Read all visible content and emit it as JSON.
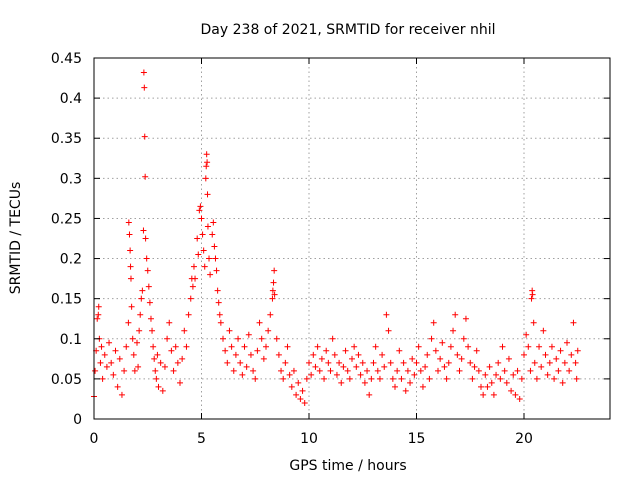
{
  "chart_data": {
    "type": "scatter",
    "title": "Day 238 of 2021, SRMTID for receiver nhil",
    "xlabel": "GPS time / hours",
    "ylabel": "SRMTID / TECUs",
    "xlim": [
      0,
      24
    ],
    "ylim": [
      0,
      0.45
    ],
    "x_ticks": [
      0,
      5,
      10,
      15,
      20
    ],
    "y_ticks": [
      0,
      0.05,
      0.1,
      0.15,
      0.2,
      0.25,
      0.3,
      0.35,
      0.4,
      0.45
    ],
    "x_tick_labels": [
      "0",
      "5",
      "10",
      "15",
      "20"
    ],
    "y_tick_labels": [
      "0",
      "0.05",
      "0.1",
      "0.15",
      "0.2",
      "0.25",
      "0.3",
      "0.35",
      "0.4",
      "0.45"
    ],
    "grid": true,
    "marker": "+",
    "color": "#ff0000",
    "series": [
      {
        "name": "SRMTID",
        "points": [
          [
            0.0,
            0.028
          ],
          [
            0.05,
            0.06
          ],
          [
            0.1,
            0.085
          ],
          [
            0.15,
            0.125
          ],
          [
            0.2,
            0.13
          ],
          [
            0.22,
            0.14
          ],
          [
            0.25,
            0.1
          ],
          [
            0.3,
            0.07
          ],
          [
            0.35,
            0.09
          ],
          [
            0.4,
            0.05
          ],
          [
            0.5,
            0.08
          ],
          [
            0.6,
            0.065
          ],
          [
            0.7,
            0.095
          ],
          [
            0.8,
            0.07
          ],
          [
            0.9,
            0.055
          ],
          [
            1.0,
            0.085
          ],
          [
            1.1,
            0.04
          ],
          [
            1.2,
            0.075
          ],
          [
            1.3,
            0.03
          ],
          [
            1.4,
            0.06
          ],
          [
            1.5,
            0.09
          ],
          [
            1.6,
            0.12
          ],
          [
            1.62,
            0.245
          ],
          [
            1.65,
            0.23
          ],
          [
            1.68,
            0.21
          ],
          [
            1.7,
            0.19
          ],
          [
            1.72,
            0.175
          ],
          [
            1.75,
            0.14
          ],
          [
            1.8,
            0.1
          ],
          [
            1.85,
            0.08
          ],
          [
            1.9,
            0.06
          ],
          [
            2.0,
            0.095
          ],
          [
            2.05,
            0.065
          ],
          [
            2.1,
            0.11
          ],
          [
            2.15,
            0.13
          ],
          [
            2.2,
            0.15
          ],
          [
            2.25,
            0.16
          ],
          [
            2.3,
            0.235
          ],
          [
            2.32,
            0.432
          ],
          [
            2.34,
            0.413
          ],
          [
            2.36,
            0.352
          ],
          [
            2.38,
            0.302
          ],
          [
            2.4,
            0.225
          ],
          [
            2.45,
            0.2
          ],
          [
            2.5,
            0.185
          ],
          [
            2.55,
            0.165
          ],
          [
            2.6,
            0.145
          ],
          [
            2.65,
            0.125
          ],
          [
            2.7,
            0.11
          ],
          [
            2.75,
            0.09
          ],
          [
            2.8,
            0.075
          ],
          [
            2.85,
            0.06
          ],
          [
            2.9,
            0.05
          ],
          [
            2.95,
            0.08
          ],
          [
            3.0,
            0.04
          ],
          [
            3.1,
            0.07
          ],
          [
            3.2,
            0.035
          ],
          [
            3.3,
            0.065
          ],
          [
            3.4,
            0.1
          ],
          [
            3.5,
            0.12
          ],
          [
            3.6,
            0.085
          ],
          [
            3.7,
            0.06
          ],
          [
            3.8,
            0.09
          ],
          [
            3.9,
            0.07
          ],
          [
            4.0,
            0.045
          ],
          [
            4.1,
            0.075
          ],
          [
            4.2,
            0.11
          ],
          [
            4.3,
            0.09
          ],
          [
            4.4,
            0.13
          ],
          [
            4.5,
            0.15
          ],
          [
            4.55,
            0.175
          ],
          [
            4.6,
            0.165
          ],
          [
            4.65,
            0.19
          ],
          [
            4.7,
            0.175
          ],
          [
            4.8,
            0.225
          ],
          [
            4.85,
            0.205
          ],
          [
            4.9,
            0.26
          ],
          [
            4.95,
            0.265
          ],
          [
            5.0,
            0.25
          ],
          [
            5.05,
            0.23
          ],
          [
            5.1,
            0.21
          ],
          [
            5.15,
            0.19
          ],
          [
            5.2,
            0.3
          ],
          [
            5.22,
            0.315
          ],
          [
            5.24,
            0.33
          ],
          [
            5.26,
            0.32
          ],
          [
            5.28,
            0.28
          ],
          [
            5.3,
            0.24
          ],
          [
            5.35,
            0.2
          ],
          [
            5.4,
            0.18
          ],
          [
            5.5,
            0.23
          ],
          [
            5.55,
            0.245
          ],
          [
            5.6,
            0.215
          ],
          [
            5.65,
            0.2
          ],
          [
            5.7,
            0.185
          ],
          [
            5.75,
            0.16
          ],
          [
            5.8,
            0.145
          ],
          [
            5.85,
            0.13
          ],
          [
            5.9,
            0.12
          ],
          [
            6.0,
            0.1
          ],
          [
            6.1,
            0.085
          ],
          [
            6.2,
            0.07
          ],
          [
            6.3,
            0.11
          ],
          [
            6.4,
            0.09
          ],
          [
            6.5,
            0.06
          ],
          [
            6.6,
            0.08
          ],
          [
            6.7,
            0.1
          ],
          [
            6.8,
            0.07
          ],
          [
            6.9,
            0.055
          ],
          [
            7.0,
            0.09
          ],
          [
            7.1,
            0.065
          ],
          [
            7.2,
            0.105
          ],
          [
            7.3,
            0.08
          ],
          [
            7.4,
            0.06
          ],
          [
            7.5,
            0.05
          ],
          [
            7.6,
            0.085
          ],
          [
            7.7,
            0.12
          ],
          [
            7.8,
            0.1
          ],
          [
            7.9,
            0.075
          ],
          [
            8.0,
            0.09
          ],
          [
            8.1,
            0.11
          ],
          [
            8.2,
            0.13
          ],
          [
            8.3,
            0.15
          ],
          [
            8.32,
            0.16
          ],
          [
            8.35,
            0.17
          ],
          [
            8.38,
            0.185
          ],
          [
            8.4,
            0.155
          ],
          [
            8.5,
            0.1
          ],
          [
            8.6,
            0.08
          ],
          [
            8.7,
            0.06
          ],
          [
            8.8,
            0.05
          ],
          [
            8.9,
            0.07
          ],
          [
            9.0,
            0.09
          ],
          [
            9.1,
            0.055
          ],
          [
            9.2,
            0.04
          ],
          [
            9.3,
            0.06
          ],
          [
            9.4,
            0.03
          ],
          [
            9.5,
            0.045
          ],
          [
            9.6,
            0.025
          ],
          [
            9.7,
            0.035
          ],
          [
            9.8,
            0.02
          ],
          [
            9.9,
            0.05
          ],
          [
            10.0,
            0.07
          ],
          [
            10.1,
            0.055
          ],
          [
            10.2,
            0.08
          ],
          [
            10.3,
            0.065
          ],
          [
            10.4,
            0.09
          ],
          [
            10.5,
            0.06
          ],
          [
            10.6,
            0.075
          ],
          [
            10.7,
            0.05
          ],
          [
            10.8,
            0.085
          ],
          [
            10.9,
            0.07
          ],
          [
            11.0,
            0.06
          ],
          [
            11.1,
            0.1
          ],
          [
            11.2,
            0.08
          ],
          [
            11.3,
            0.055
          ],
          [
            11.4,
            0.07
          ],
          [
            11.5,
            0.045
          ],
          [
            11.6,
            0.065
          ],
          [
            11.7,
            0.085
          ],
          [
            11.8,
            0.06
          ],
          [
            11.9,
            0.05
          ],
          [
            12.0,
            0.075
          ],
          [
            12.1,
            0.09
          ],
          [
            12.2,
            0.065
          ],
          [
            12.3,
            0.08
          ],
          [
            12.4,
            0.055
          ],
          [
            12.5,
            0.07
          ],
          [
            12.6,
            0.045
          ],
          [
            12.7,
            0.06
          ],
          [
            12.8,
            0.03
          ],
          [
            12.9,
            0.05
          ],
          [
            13.0,
            0.07
          ],
          [
            13.1,
            0.09
          ],
          [
            13.2,
            0.06
          ],
          [
            13.3,
            0.05
          ],
          [
            13.4,
            0.08
          ],
          [
            13.5,
            0.065
          ],
          [
            13.6,
            0.13
          ],
          [
            13.7,
            0.11
          ],
          [
            13.8,
            0.07
          ],
          [
            13.9,
            0.05
          ],
          [
            14.0,
            0.04
          ],
          [
            14.1,
            0.06
          ],
          [
            14.2,
            0.085
          ],
          [
            14.3,
            0.05
          ],
          [
            14.4,
            0.07
          ],
          [
            14.5,
            0.035
          ],
          [
            14.6,
            0.06
          ],
          [
            14.7,
            0.045
          ],
          [
            14.8,
            0.075
          ],
          [
            14.9,
            0.055
          ],
          [
            15.0,
            0.07
          ],
          [
            15.1,
            0.09
          ],
          [
            15.2,
            0.06
          ],
          [
            15.3,
            0.04
          ],
          [
            15.4,
            0.065
          ],
          [
            15.5,
            0.08
          ],
          [
            15.6,
            0.05
          ],
          [
            15.7,
            0.1
          ],
          [
            15.8,
            0.12
          ],
          [
            15.9,
            0.085
          ],
          [
            16.0,
            0.06
          ],
          [
            16.1,
            0.075
          ],
          [
            16.2,
            0.095
          ],
          [
            16.3,
            0.065
          ],
          [
            16.4,
            0.05
          ],
          [
            16.5,
            0.07
          ],
          [
            16.6,
            0.09
          ],
          [
            16.7,
            0.11
          ],
          [
            16.8,
            0.13
          ],
          [
            16.9,
            0.08
          ],
          [
            17.0,
            0.06
          ],
          [
            17.1,
            0.075
          ],
          [
            17.2,
            0.1
          ],
          [
            17.3,
            0.125
          ],
          [
            17.4,
            0.09
          ],
          [
            17.5,
            0.07
          ],
          [
            17.6,
            0.05
          ],
          [
            17.7,
            0.065
          ],
          [
            17.8,
            0.085
          ],
          [
            17.9,
            0.06
          ],
          [
            18.0,
            0.04
          ],
          [
            18.1,
            0.03
          ],
          [
            18.2,
            0.055
          ],
          [
            18.3,
            0.04
          ],
          [
            18.4,
            0.065
          ],
          [
            18.5,
            0.045
          ],
          [
            18.6,
            0.03
          ],
          [
            18.7,
            0.055
          ],
          [
            18.8,
            0.07
          ],
          [
            18.9,
            0.05
          ],
          [
            19.0,
            0.09
          ],
          [
            19.1,
            0.06
          ],
          [
            19.2,
            0.045
          ],
          [
            19.3,
            0.075
          ],
          [
            19.4,
            0.035
          ],
          [
            19.5,
            0.055
          ],
          [
            19.6,
            0.03
          ],
          [
            19.7,
            0.06
          ],
          [
            19.8,
            0.025
          ],
          [
            19.9,
            0.05
          ],
          [
            20.0,
            0.08
          ],
          [
            20.1,
            0.105
          ],
          [
            20.2,
            0.09
          ],
          [
            20.3,
            0.06
          ],
          [
            20.35,
            0.15
          ],
          [
            20.38,
            0.16
          ],
          [
            20.4,
            0.155
          ],
          [
            20.45,
            0.12
          ],
          [
            20.5,
            0.07
          ],
          [
            20.6,
            0.05
          ],
          [
            20.7,
            0.09
          ],
          [
            20.8,
            0.065
          ],
          [
            20.9,
            0.11
          ],
          [
            21.0,
            0.08
          ],
          [
            21.1,
            0.055
          ],
          [
            21.2,
            0.07
          ],
          [
            21.3,
            0.09
          ],
          [
            21.4,
            0.05
          ],
          [
            21.5,
            0.075
          ],
          [
            21.6,
            0.06
          ],
          [
            21.7,
            0.085
          ],
          [
            21.8,
            0.045
          ],
          [
            21.9,
            0.07
          ],
          [
            22.0,
            0.095
          ],
          [
            22.1,
            0.06
          ],
          [
            22.2,
            0.08
          ],
          [
            22.3,
            0.12
          ],
          [
            22.4,
            0.07
          ],
          [
            22.45,
            0.05
          ],
          [
            22.5,
            0.085
          ]
        ]
      }
    ]
  }
}
